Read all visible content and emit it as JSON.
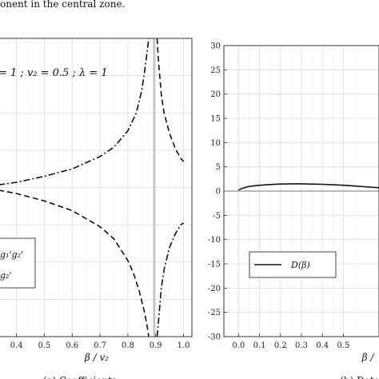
{
  "top_caption": "onent in the central zone.",
  "chart_data": [
    {
      "type": "line",
      "panel_caption": "(a) Coefficients",
      "xlabel": "β / v₂",
      "xlim": [
        0.335,
        1.03
      ],
      "ylim": [
        -4,
        4
      ],
      "x_ticks": [
        "0.4",
        "0.5",
        "0.6",
        "0.7",
        "0.8",
        "0.9",
        "1.0"
      ],
      "x_tick_values": [
        0.4,
        0.5,
        0.6,
        0.7,
        0.8,
        0.9,
        1.0
      ],
      "grid": true,
      "parameters_text": "= 1  ;  v₂ = 0.5  ;  λ = 1",
      "asymptote_x": 0.894,
      "legend_labels": [
        "g₁'g₂'",
        "g₂'"
      ],
      "legend_position": "bottom-left",
      "series": [
        {
          "style": "dash-dot",
          "x": [
            0.335,
            0.4,
            0.5,
            0.6,
            0.7,
            0.75,
            0.8,
            0.83,
            0.85,
            0.86,
            0.87,
            0.875
          ],
          "y": [
            0.07,
            0.14,
            0.3,
            0.5,
            0.83,
            1.08,
            1.52,
            2.0,
            2.6,
            3.1,
            3.7,
            4.0
          ]
        },
        {
          "style": "dashed",
          "x": [
            0.335,
            0.4,
            0.5,
            0.6,
            0.7,
            0.75,
            0.8,
            0.82,
            0.84,
            0.86,
            0.87,
            0.875
          ],
          "y": [
            -0.07,
            -0.16,
            -0.36,
            -0.62,
            -1.05,
            -1.38,
            -1.96,
            -2.3,
            -2.75,
            -3.35,
            -3.75,
            -4.0
          ]
        },
        {
          "style": "dash-dot",
          "x": [
            0.905,
            0.91,
            0.92,
            0.93,
            0.95,
            0.97,
            0.99,
            1.0
          ],
          "y": [
            -4.0,
            -3.6,
            -2.7,
            -2.2,
            -1.6,
            -1.25,
            -1.0,
            -0.95
          ]
        },
        {
          "style": "dashed",
          "x": [
            0.905,
            0.91,
            0.92,
            0.93,
            0.95,
            0.97,
            0.99,
            1.0
          ],
          "y": [
            4.0,
            3.4,
            2.5,
            2.0,
            1.45,
            1.05,
            0.78,
            0.7
          ]
        }
      ]
    },
    {
      "type": "line",
      "panel_caption": "(b) Dete",
      "xlabel": "β /",
      "xlim": [
        -0.07,
        0.67
      ],
      "ylim": [
        -30,
        30
      ],
      "x_ticks": [
        "0.0",
        "0.1",
        "0.2",
        "0.3",
        "0.4",
        "0.5"
      ],
      "x_tick_values": [
        0.0,
        0.1,
        0.2,
        0.3,
        0.4,
        0.5
      ],
      "y_ticks": [
        "-30",
        "-25",
        "-20",
        "-15",
        "-10",
        "-5",
        "0",
        "5",
        "10",
        "15",
        "20",
        "25",
        "30"
      ],
      "y_tick_values": [
        -30,
        -25,
        -20,
        -15,
        -10,
        -5,
        0,
        5,
        10,
        15,
        20,
        25,
        30
      ],
      "grid": true,
      "legend_labels": [
        "D(β)"
      ],
      "legend_position": "lower-left",
      "series": [
        {
          "name": "D(β)",
          "style": "solid",
          "x": [
            0.0,
            0.01,
            0.03,
            0.05,
            0.1,
            0.15,
            0.2,
            0.25,
            0.3,
            0.35,
            0.4,
            0.45,
            0.5,
            0.55,
            0.6,
            0.67
          ],
          "y": [
            0.2,
            0.45,
            0.75,
            0.95,
            1.2,
            1.35,
            1.45,
            1.5,
            1.5,
            1.45,
            1.4,
            1.3,
            1.2,
            1.05,
            0.9,
            0.7
          ]
        }
      ]
    }
  ]
}
